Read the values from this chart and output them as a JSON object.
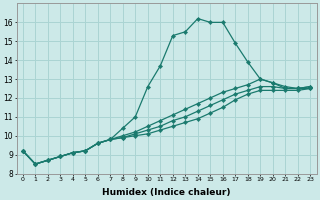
{
  "xlabel": "Humidex (Indice chaleur)",
  "bg_color": "#cce9e8",
  "grid_color": "#aad4d3",
  "line_color": "#1a7a6e",
  "xlim": [
    -0.5,
    23.5
  ],
  "ylim": [
    8,
    17
  ],
  "yticks": [
    8,
    9,
    10,
    11,
    12,
    13,
    14,
    15,
    16
  ],
  "xticks": [
    0,
    1,
    2,
    3,
    4,
    5,
    6,
    7,
    8,
    9,
    10,
    11,
    12,
    13,
    14,
    15,
    16,
    17,
    18,
    19,
    20,
    21,
    22,
    23
  ],
  "series": [
    {
      "x": [
        0,
        1,
        2,
        3,
        4,
        5,
        6,
        7,
        8,
        9,
        10,
        11,
        12,
        13,
        14,
        15,
        16,
        17,
        18,
        19,
        20,
        21,
        22,
        23
      ],
      "y": [
        9.2,
        8.5,
        8.7,
        8.9,
        9.1,
        9.2,
        9.6,
        9.8,
        10.4,
        11.0,
        12.6,
        13.7,
        15.3,
        15.5,
        16.2,
        16.0,
        16.0,
        14.9,
        13.9,
        13.0,
        12.8,
        12.5,
        12.5,
        12.6
      ]
    },
    {
      "x": [
        0,
        1,
        2,
        3,
        4,
        5,
        6,
        7,
        8,
        9,
        10,
        11,
        12,
        13,
        14,
        15,
        16,
        17,
        18,
        19,
        20,
        21,
        22,
        23
      ],
      "y": [
        9.2,
        8.5,
        8.7,
        8.9,
        9.1,
        9.2,
        9.6,
        9.8,
        10.0,
        10.2,
        10.5,
        10.8,
        11.1,
        11.4,
        11.7,
        12.0,
        12.3,
        12.5,
        12.7,
        13.0,
        12.8,
        12.6,
        12.5,
        12.6
      ]
    },
    {
      "x": [
        0,
        1,
        2,
        3,
        4,
        5,
        6,
        7,
        8,
        9,
        10,
        11,
        12,
        13,
        14,
        15,
        16,
        17,
        18,
        19,
        20,
        21,
        22,
        23
      ],
      "y": [
        9.2,
        8.5,
        8.7,
        8.9,
        9.1,
        9.2,
        9.6,
        9.8,
        9.9,
        10.1,
        10.3,
        10.5,
        10.8,
        11.0,
        11.3,
        11.6,
        11.9,
        12.2,
        12.4,
        12.6,
        12.6,
        12.5,
        12.5,
        12.5
      ]
    },
    {
      "x": [
        0,
        1,
        2,
        3,
        4,
        5,
        6,
        7,
        8,
        9,
        10,
        11,
        12,
        13,
        14,
        15,
        16,
        17,
        18,
        19,
        20,
        21,
        22,
        23
      ],
      "y": [
        9.2,
        8.5,
        8.7,
        8.9,
        9.1,
        9.2,
        9.6,
        9.8,
        9.9,
        10.0,
        10.1,
        10.3,
        10.5,
        10.7,
        10.9,
        11.2,
        11.5,
        11.9,
        12.2,
        12.4,
        12.4,
        12.4,
        12.4,
        12.5
      ]
    }
  ]
}
